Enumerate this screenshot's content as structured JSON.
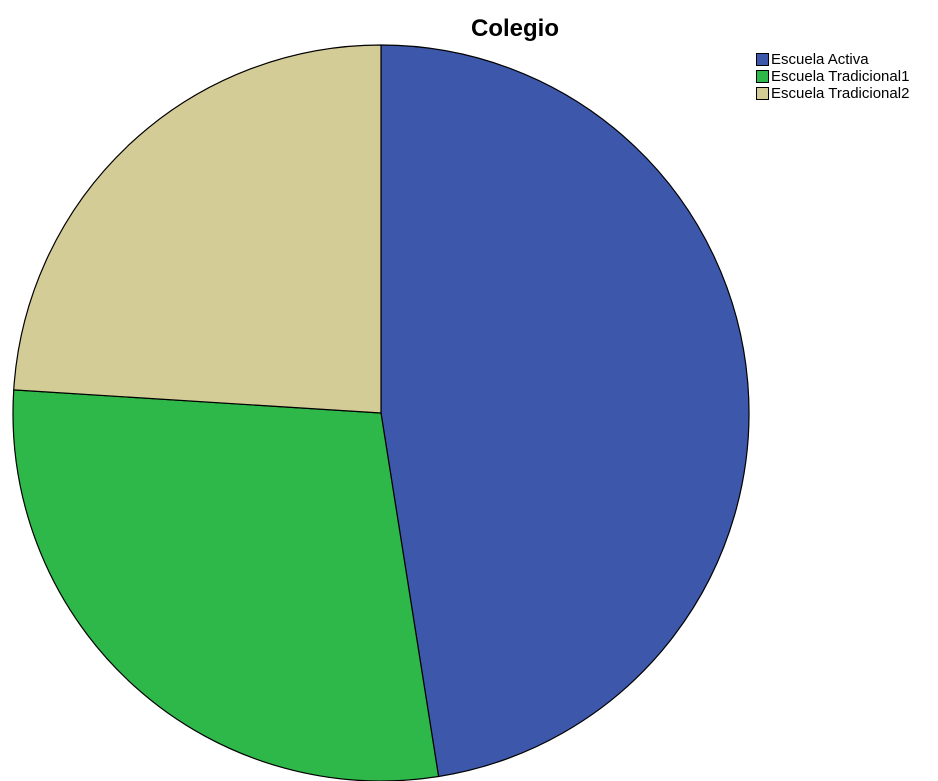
{
  "chart_data": {
    "type": "pie",
    "title": "Colegio",
    "legend_position": "top-right",
    "categories": [
      "Escuela Activa",
      "Escuela Tradicional1",
      "Escuela Tradicional2"
    ],
    "values": [
      47.5,
      28.5,
      24.0
    ],
    "colors": [
      "#3d58aa",
      "#2fb84a",
      "#d4cc96"
    ],
    "start_angle_deg": 0,
    "direction": "clockwise",
    "slice_border_color": "#000000"
  }
}
